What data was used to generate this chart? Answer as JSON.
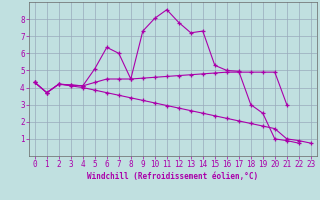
{
  "xlabel": "Windchill (Refroidissement éolien,°C)",
  "x": [
    0,
    1,
    2,
    3,
    4,
    5,
    6,
    7,
    8,
    9,
    10,
    11,
    12,
    13,
    14,
    15,
    16,
    17,
    18,
    19,
    20,
    21,
    22,
    23
  ],
  "line1": [
    4.3,
    3.7,
    4.2,
    4.15,
    4.1,
    5.1,
    6.35,
    6.0,
    4.5,
    7.3,
    8.05,
    8.55,
    7.8,
    7.2,
    7.3,
    5.3,
    5.0,
    4.95,
    3.0,
    2.5,
    1.0,
    0.9,
    0.75,
    null
  ],
  "line2": [
    4.3,
    3.7,
    4.2,
    4.15,
    4.1,
    4.3,
    4.5,
    4.5,
    4.5,
    4.55,
    4.6,
    4.65,
    4.7,
    4.75,
    4.8,
    4.85,
    4.9,
    4.9,
    4.9,
    4.9,
    4.9,
    3.0,
    null,
    null
  ],
  "line3": [
    4.3,
    3.7,
    4.2,
    4.1,
    4.0,
    3.85,
    3.7,
    3.55,
    3.4,
    3.25,
    3.1,
    2.95,
    2.8,
    2.65,
    2.5,
    2.35,
    2.2,
    2.05,
    1.9,
    1.75,
    1.6,
    1.0,
    0.9,
    0.75
  ],
  "line_color": "#aa00aa",
  "bg_color": "#c0e0e0",
  "grid_color": "#99aabb",
  "ylim": [
    0,
    9
  ],
  "xlim": [
    -0.5,
    23.5
  ],
  "yticks": [
    1,
    2,
    3,
    4,
    5,
    6,
    7,
    8
  ],
  "xticks": [
    0,
    1,
    2,
    3,
    4,
    5,
    6,
    7,
    8,
    9,
    10,
    11,
    12,
    13,
    14,
    15,
    16,
    17,
    18,
    19,
    20,
    21,
    22,
    23
  ],
  "label_fontsize": 5.5,
  "tick_fontsize": 5.5
}
